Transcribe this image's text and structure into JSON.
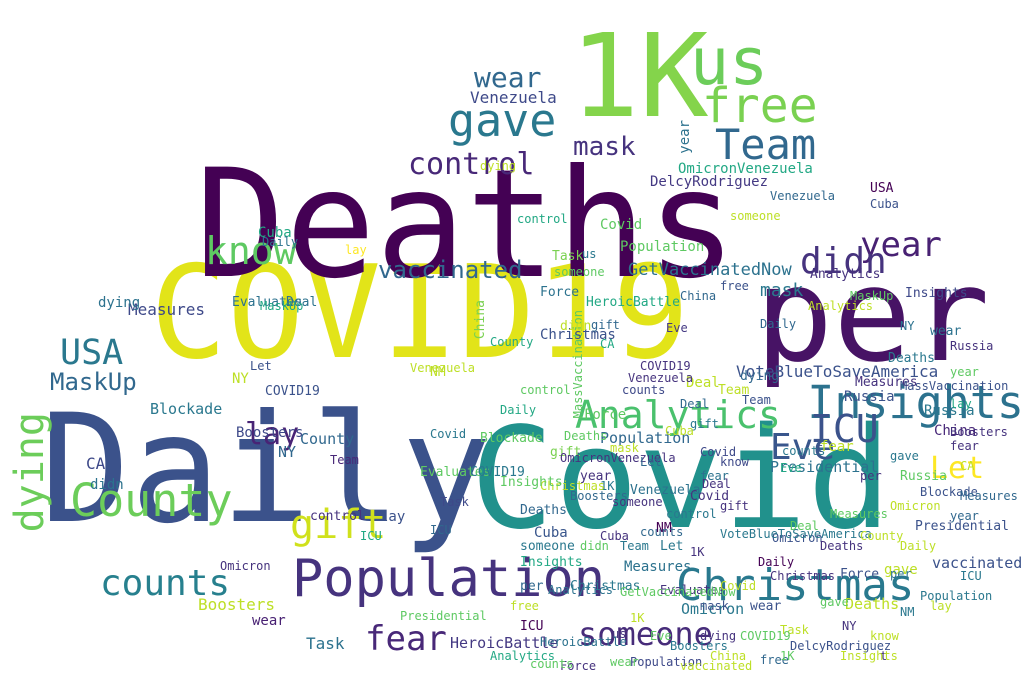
{
  "words": [
    {
      "text": "Daily",
      "color": "#3b528b"
    },
    {
      "text": "Covid",
      "color": "#21918c"
    },
    {
      "text": "COVID19",
      "color": "#e2e419"
    },
    {
      "text": "Deaths",
      "color": "#440154"
    },
    {
      "text": "per",
      "color": "#471365"
    },
    {
      "text": "1K",
      "color": "#84d44b"
    },
    {
      "text": "us",
      "color": "#6ccd5a"
    },
    {
      "text": "free",
      "color": "#7ad151"
    },
    {
      "text": "gave",
      "color": "#2a788e"
    },
    {
      "text": "Team",
      "color": "#31688e"
    },
    {
      "text": "Population",
      "color": "#46337e"
    },
    {
      "text": "Insights",
      "color": "#2c728e"
    },
    {
      "text": "Christmas",
      "color": "#29798e"
    },
    {
      "text": "Analytics",
      "color": "#4ac16d"
    },
    {
      "text": "County",
      "color": "#6ccd5a"
    },
    {
      "text": "counts",
      "color": "#27808e"
    },
    {
      "text": "gift",
      "color": "#d0e11c"
    },
    {
      "text": "someone",
      "color": "#472c7a"
    },
    {
      "text": "fear",
      "color": "#482878"
    },
    {
      "text": "year",
      "color": "#482173"
    },
    {
      "text": "ICU",
      "color": "#3b528b"
    },
    {
      "text": "Eve",
      "color": "#39568c"
    },
    {
      "text": "didn",
      "color": "#46337e"
    },
    {
      "text": "vaccinated",
      "color": "#31688e"
    },
    {
      "text": "lay",
      "color": "#482475"
    },
    {
      "text": "know",
      "color": "#5ec962"
    },
    {
      "text": "USA",
      "color": "#2a788e"
    },
    {
      "text": "MaskUp",
      "color": "#31688e"
    },
    {
      "text": "dying",
      "color": "#6ccd5a"
    },
    {
      "text": "control",
      "color": "#482878"
    },
    {
      "text": "wear",
      "color": "#31688e"
    },
    {
      "text": "mask",
      "color": "#46337e"
    },
    {
      "text": "Let",
      "color": "#fde725"
    },
    {
      "text": "Venezuela",
      "color": "#3e4989"
    },
    {
      "text": "GetVaccinatedNow",
      "color": "#2c728e"
    },
    {
      "text": "VoteBlueToSaveAmerica",
      "color": "#3b528b"
    },
    {
      "text": "DelcyRodriguez",
      "color": "#443983"
    },
    {
      "text": "OmicronVenezuela",
      "color": "#22a884"
    },
    {
      "text": "Measures",
      "color": "#3e4989"
    },
    {
      "text": "Blockade",
      "color": "#2a788e"
    },
    {
      "text": "Presidential",
      "color": "#2c728e"
    },
    {
      "text": "HeroicBattle",
      "color": "#443983"
    },
    {
      "text": "Boosters",
      "color": "#bddf26"
    },
    {
      "text": "Task",
      "color": "#2c728e"
    },
    {
      "text": "Force",
      "color": "#3b528b"
    },
    {
      "text": "Cuba",
      "color": "#39568c"
    },
    {
      "text": "China",
      "color": "#7ad151"
    },
    {
      "text": "Russia",
      "color": "#2a788e"
    },
    {
      "text": "CA",
      "color": "#3e4989"
    },
    {
      "text": "NY",
      "color": "#31688e"
    },
    {
      "text": "NM",
      "color": "#440154"
    },
    {
      "text": "Omicron",
      "color": "#2a788e"
    },
    {
      "text": "MassVaccination",
      "color": "#5ec962"
    },
    {
      "text": "Evaluates",
      "color": "#2c728e"
    },
    {
      "text": "Deal",
      "color": "#bddf26"
    },
    {
      "text": "Deaths",
      "color": "#bddf26"
    },
    {
      "text": "Insights",
      "color": "#3e4989"
    },
    {
      "text": "Christmas",
      "color": "#3b528b"
    },
    {
      "text": "Measures",
      "color": "#46337e"
    },
    {
      "text": "counts",
      "color": "#2a788e"
    },
    {
      "text": "Population",
      "color": "#31688e"
    },
    {
      "text": "wear",
      "color": "#482173"
    },
    {
      "text": "COVID19",
      "color": "#3b528b"
    },
    {
      "text": "Covid",
      "color": "#5ec962"
    },
    {
      "text": "Daily",
      "color": "#440154"
    },
    {
      "text": "lay",
      "color": "#fde725"
    },
    {
      "text": "County",
      "color": "#31688e"
    },
    {
      "text": "Analytics",
      "color": "#46337e"
    },
    {
      "text": "year",
      "color": "#2c728e"
    },
    {
      "text": "gift",
      "color": "#7ad151"
    },
    {
      "text": "Boosters",
      "color": "#3e4989"
    },
    {
      "text": "t",
      "color": "#3b528b"
    },
    {
      "text": "mask",
      "color": "#2a788e"
    },
    {
      "text": "NY",
      "color": "#bddf26"
    },
    {
      "text": "Team",
      "color": "#482878"
    },
    {
      "text": "Eve",
      "color": "#443983"
    },
    {
      "text": "1K",
      "color": "#2a788e"
    },
    {
      "text": "Cuba",
      "color": "#22a884"
    },
    {
      "text": "control",
      "color": "#46337e"
    },
    {
      "text": "dying",
      "color": "#2c728e"
    },
    {
      "text": "Let",
      "color": "#3b528b"
    },
    {
      "text": "Deal",
      "color": "#2c728e"
    },
    {
      "text": "free",
      "color": "#31688e"
    },
    {
      "text": "ICU",
      "color": "#440154"
    },
    {
      "text": "fear",
      "color": "#bddf26"
    },
    {
      "text": "someone",
      "color": "#2a788e"
    },
    {
      "text": "Venezuela",
      "color": "#bddf26"
    },
    {
      "text": "Blockade",
      "color": "#5ec962"
    },
    {
      "text": "Daily",
      "color": "#31688e"
    },
    {
      "text": "USA",
      "color": "#440154"
    },
    {
      "text": "didn",
      "color": "#2c728e"
    },
    {
      "text": "Force",
      "color": "#5ec962"
    },
    {
      "text": "Russia",
      "color": "#3b528b"
    },
    {
      "text": "China",
      "color": "#482878"
    },
    {
      "text": "HeroicBattle",
      "color": "#22a884"
    },
    {
      "text": "Deaths",
      "color": "#2a788e"
    },
    {
      "text": "Covid",
      "color": "#3e4989"
    },
    {
      "text": "Task",
      "color": "#7ad151"
    },
    {
      "text": "Measures",
      "color": "#2c728e"
    },
    {
      "text": "Boosters",
      "color": "#31688e"
    },
    {
      "text": "Presidential",
      "color": "#3b528b"
    },
    {
      "text": "Omicron",
      "color": "#46337e"
    },
    {
      "text": "gave",
      "color": "#bddf26"
    },
    {
      "text": "counts",
      "color": "#3e4989"
    },
    {
      "text": "Analytics",
      "color": "#2c728e"
    },
    {
      "text": "Evaluates",
      "color": "#5ec962"
    },
    {
      "text": "COVID19",
      "color": "#2a788e"
    },
    {
      "text": "per",
      "color": "#31688e"
    },
    {
      "text": "Christmas",
      "color": "#bddf26"
    },
    {
      "text": "Population",
      "color": "#5ec962"
    },
    {
      "text": "vaccinated",
      "color": "#3b528b"
    },
    {
      "text": "MaskUp",
      "color": "#22a884"
    },
    {
      "text": "year",
      "color": "#46337e"
    },
    {
      "text": "wear",
      "color": "#2c728e"
    },
    {
      "text": "know",
      "color": "#3e4989"
    },
    {
      "text": "CA",
      "color": "#22a884"
    },
    {
      "text": "NM",
      "color": "#bddf26"
    },
    {
      "text": "us",
      "color": "#2a788e"
    },
    {
      "text": "Insights",
      "color": "#5ec962"
    },
    {
      "text": "1K",
      "color": "#46337e"
    },
    {
      "text": "Deaths",
      "color": "#31688e"
    },
    {
      "text": "Daily",
      "color": "#2c728e"
    },
    {
      "text": "ICU",
      "color": "#22a884"
    },
    {
      "text": "lay",
      "color": "#3b528b"
    },
    {
      "text": "Team",
      "color": "#bddf26"
    },
    {
      "text": "gift",
      "color": "#2a788e"
    },
    {
      "text": "someone",
      "color": "#46337e"
    },
    {
      "text": "dying",
      "color": "#31688e"
    },
    {
      "text": "control",
      "color": "#5ec962"
    },
    {
      "text": "Venezuela",
      "color": "#2c728e"
    },
    {
      "text": "Cuba",
      "color": "#3b528b"
    },
    {
      "text": "Covid",
      "color": "#46337e"
    },
    {
      "text": "Deal",
      "color": "#31688e"
    },
    {
      "text": "Eve",
      "color": "#22a884"
    },
    {
      "text": "Let",
      "color": "#2a788e"
    },
    {
      "text": "mask",
      "color": "#bddf26"
    },
    {
      "text": "Task",
      "color": "#3e4989"
    },
    {
      "text": "Force",
      "color": "#2c728e"
    },
    {
      "text": "China",
      "color": "#31688e"
    },
    {
      "text": "Russia",
      "color": "#5ec962"
    },
    {
      "text": "NY",
      "color": "#46337e"
    },
    {
      "text": "gave",
      "color": "#2a788e"
    },
    {
      "text": "free",
      "color": "#3b528b"
    },
    {
      "text": "didn",
      "color": "#bddf26"
    },
    {
      "text": "County",
      "color": "#22a884"
    },
    {
      "text": "fear",
      "color": "#2c728e"
    },
    {
      "text": "Measures",
      "color": "#5ec962"
    },
    {
      "text": "Boosters",
      "color": "#46337e"
    },
    {
      "text": "counts",
      "color": "#31688e"
    },
    {
      "text": "Omicron",
      "color": "#3b528b"
    },
    {
      "text": "Christmas",
      "color": "#2a788e"
    },
    {
      "text": "Population",
      "color": "#3e4989"
    },
    {
      "text": "Insights",
      "color": "#22a884"
    },
    {
      "text": "Analytics",
      "color": "#bddf26"
    },
    {
      "text": "COVID19",
      "color": "#46337e"
    },
    {
      "text": "year",
      "color": "#5ec962"
    },
    {
      "text": "wear",
      "color": "#3b528b"
    },
    {
      "text": "per",
      "color": "#2c728e"
    },
    {
      "text": "1K",
      "color": "#bddf26"
    },
    {
      "text": "us",
      "color": "#46337e"
    },
    {
      "text": "Deaths",
      "color": "#5ec962"
    },
    {
      "text": "Daily",
      "color": "#22a884"
    },
    {
      "text": "Covid",
      "color": "#2a788e"
    },
    {
      "text": "Team",
      "color": "#3b528b"
    },
    {
      "text": "gift",
      "color": "#46337e"
    },
    {
      "text": "lay",
      "color": "#22a884"
    },
    {
      "text": "know",
      "color": "#bddf26"
    },
    {
      "text": "ICU",
      "color": "#31688e"
    },
    {
      "text": "MaskUp",
      "color": "#5ec962"
    },
    {
      "text": "dying",
      "color": "#46337e"
    },
    {
      "text": "control",
      "color": "#2a788e"
    },
    {
      "text": "someone",
      "color": "#bddf26"
    },
    {
      "text": "Venezuela",
      "color": "#31688e"
    },
    {
      "text": "Evaluates",
      "color": "#46337e"
    },
    {
      "text": "Blockade",
      "color": "#3b528b"
    },
    {
      "text": "Presidential",
      "color": "#5ec962"
    },
    {
      "text": "HeroicBattle",
      "color": "#2c728e"
    },
    {
      "text": "DelcyRodriguez",
      "color": "#3b528b"
    },
    {
      "text": "OmicronVenezuela",
      "color": "#46337e"
    },
    {
      "text": "GetVaccinatedNow",
      "color": "#5ec962"
    },
    {
      "text": "VoteBlueToSaveAmerica",
      "color": "#2a788e"
    },
    {
      "text": "MassVaccination",
      "color": "#3b528b"
    },
    {
      "text": "Deal",
      "color": "#5ec962"
    },
    {
      "text": "Cuba",
      "color": "#46337e"
    },
    {
      "text": "CA",
      "color": "#bddf26"
    },
    {
      "text": "NM",
      "color": "#2a788e"
    },
    {
      "text": "Let",
      "color": "#31688e"
    },
    {
      "text": "Eve",
      "color": "#5ec962"
    },
    {
      "text": "t",
      "color": "#46337e"
    },
    {
      "text": "Task",
      "color": "#bddf26"
    },
    {
      "text": "Force",
      "color": "#46337e"
    },
    {
      "text": "China",
      "color": "#bddf26"
    },
    {
      "text": "Russia",
      "color": "#46337e"
    },
    {
      "text": "NY",
      "color": "#2c728e"
    },
    {
      "text": "gave",
      "color": "#5ec962"
    },
    {
      "text": "mask",
      "color": "#3b528b"
    },
    {
      "text": "free",
      "color": "#bddf26"
    },
    {
      "text": "didn",
      "color": "#5ec962"
    },
    {
      "text": "fear",
      "color": "#46337e"
    },
    {
      "text": "County",
      "color": "#bddf26"
    },
    {
      "text": "counts",
      "color": "#5ec962"
    },
    {
      "text": "Measures",
      "color": "#31688e"
    },
    {
      "text": "Boosters",
      "color": "#2a788e"
    },
    {
      "text": "Omicron",
      "color": "#bddf26"
    },
    {
      "text": "Population",
      "color": "#2a788e"
    },
    {
      "text": "Christmas",
      "color": "#46337e"
    },
    {
      "text": "Insights",
      "color": "#bddf26"
    },
    {
      "text": "Analytics",
      "color": "#22a884"
    },
    {
      "text": "COVID19",
      "color": "#5ec962"
    },
    {
      "text": "vaccinated",
      "color": "#bddf26"
    },
    {
      "text": "year",
      "color": "#31688e"
    },
    {
      "text": "wear",
      "color": "#5ec962"
    },
    {
      "text": "Deaths",
      "color": "#46337e"
    },
    {
      "text": "Daily",
      "color": "#bddf26"
    },
    {
      "text": "Covid",
      "color": "#bddf26"
    },
    {
      "text": "per",
      "color": "#46337e"
    },
    {
      "text": "1K",
      "color": "#5ec962"
    },
    {
      "text": "Team",
      "color": "#2a788e"
    },
    {
      "text": "lay",
      "color": "#bddf26"
    },
    {
      "text": "ICU",
      "color": "#2a788e"
    },
    {
      "text": "dying",
      "color": "#bddf26"
    },
    {
      "text": "control",
      "color": "#22a884"
    },
    {
      "text": "someone",
      "color": "#5ec962"
    },
    {
      "text": "gift",
      "color": "#31688e"
    },
    {
      "text": "Venezuela",
      "color": "#46337e"
    },
    {
      "text": "Cuba",
      "color": "#bddf26"
    },
    {
      "text": "Deal",
      "color": "#46337e"
    }
  ]
}
